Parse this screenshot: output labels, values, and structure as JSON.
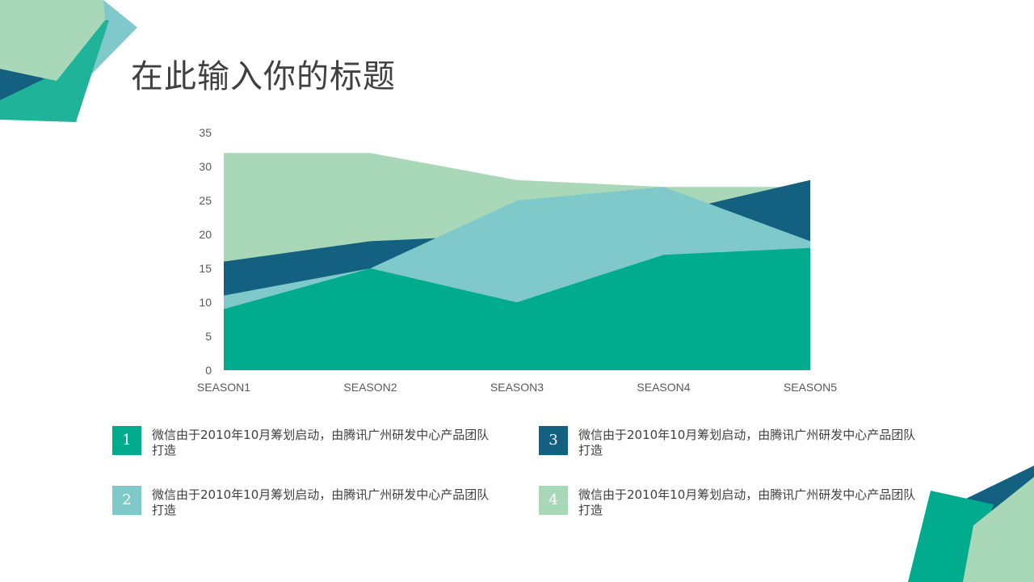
{
  "title": "在此输入你的标题",
  "colors": {
    "teal": "#00ab8e",
    "light_blue": "#80c9cb",
    "navy": "#136080",
    "mint": "#a9d8b9",
    "title_text": "#404040"
  },
  "chart_data": {
    "type": "area",
    "categories": [
      "SEASON1",
      "SEASON2",
      "SEASON3",
      "SEASON4",
      "SEASON5"
    ],
    "ylim": [
      0,
      35
    ],
    "yticks": [
      0,
      5,
      10,
      15,
      20,
      25,
      30,
      35
    ],
    "grid": false,
    "legend": "none",
    "series": [
      {
        "values": [
          32,
          32,
          28,
          27,
          27
        ],
        "color": "#a9d8b9"
      },
      {
        "values": [
          16,
          19,
          20,
          23,
          28
        ],
        "color": "#136080"
      },
      {
        "values": [
          11,
          15,
          25,
          27,
          19
        ],
        "color": "#80c9cb"
      },
      {
        "values": [
          9,
          15,
          10,
          17,
          18
        ],
        "color": "#00ab8e"
      }
    ]
  },
  "notes": [
    {
      "number": "1",
      "text": "微信由于2010年10月筹划启动，由腾讯广州研发中心产品团队打造",
      "color": "#00ab8e"
    },
    {
      "number": "2",
      "text": "微信由于2010年10月筹划启动，由腾讯广州研发中心产品团队打造",
      "color": "#80c9cb"
    },
    {
      "number": "3",
      "text": "微信由于2010年10月筹划启动，由腾讯广州研发中心产品团队打造",
      "color": "#136080"
    },
    {
      "number": "4",
      "text": "微信由于2010年10月筹划启动，由腾讯广州研发中心产品团队打造",
      "color": "#a9d8b9"
    }
  ]
}
